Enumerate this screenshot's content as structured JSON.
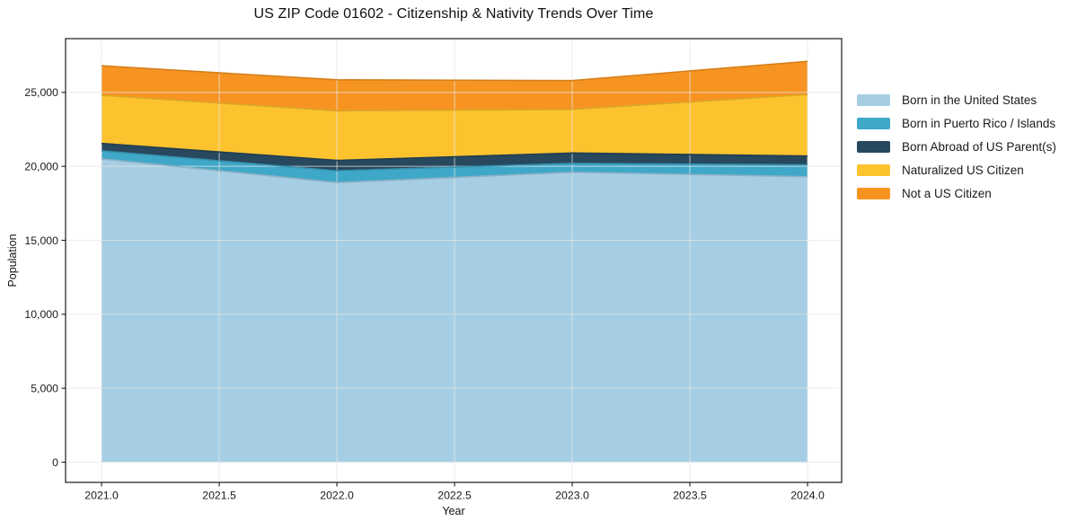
{
  "chart_data": {
    "type": "area",
    "stacked": true,
    "title": "US ZIP Code 01602 - Citizenship & Nativity Trends Over Time",
    "xlabel": "Year",
    "ylabel": "Population",
    "x": [
      2021,
      2022,
      2023,
      2024
    ],
    "series": [
      {
        "name": "Born in the United States",
        "color": "#A5CEE4",
        "values": [
          20500,
          18900,
          19600,
          19300
        ]
      },
      {
        "name": "Born in Puerto Rico / Islands",
        "color": "#3FA8C8",
        "values": [
          550,
          800,
          600,
          800
        ]
      },
      {
        "name": "Born Abroad of US Parent(s)",
        "color": "#27485D",
        "values": [
          500,
          700,
          700,
          600
        ]
      },
      {
        "name": "Naturalized US Citizen",
        "color": "#FDC32E",
        "values": [
          3250,
          3350,
          2950,
          4150
        ]
      },
      {
        "name": "Not a US Citizen",
        "color": "#F79421",
        "values": [
          2000,
          2100,
          1950,
          2250
        ]
      }
    ],
    "stacked_totals": [
      26800,
      25850,
      25800,
      27100
    ],
    "xlim": [
      2020.847,
      2024.145
    ],
    "ylim": [
      -1366,
      28634
    ],
    "x_ticks": [
      2021.0,
      2021.5,
      2022.0,
      2022.5,
      2023.0,
      2023.5,
      2024.0
    ],
    "x_tick_labels": [
      "2021.0",
      "2021.5",
      "2022.0",
      "2022.5",
      "2023.0",
      "2023.5",
      "2024.0"
    ],
    "y_ticks": [
      0,
      5000,
      10000,
      15000,
      20000,
      25000
    ],
    "y_tick_labels": [
      "0",
      "5,000",
      "10,000",
      "15,000",
      "20,000",
      "25,000"
    ],
    "grid": true,
    "legend_position": "right-outside",
    "colors": {
      "background": "#ffffff",
      "axis": "#1a1a1a",
      "gridline": "#e6e6e6",
      "text": "#1a1a1a"
    }
  }
}
